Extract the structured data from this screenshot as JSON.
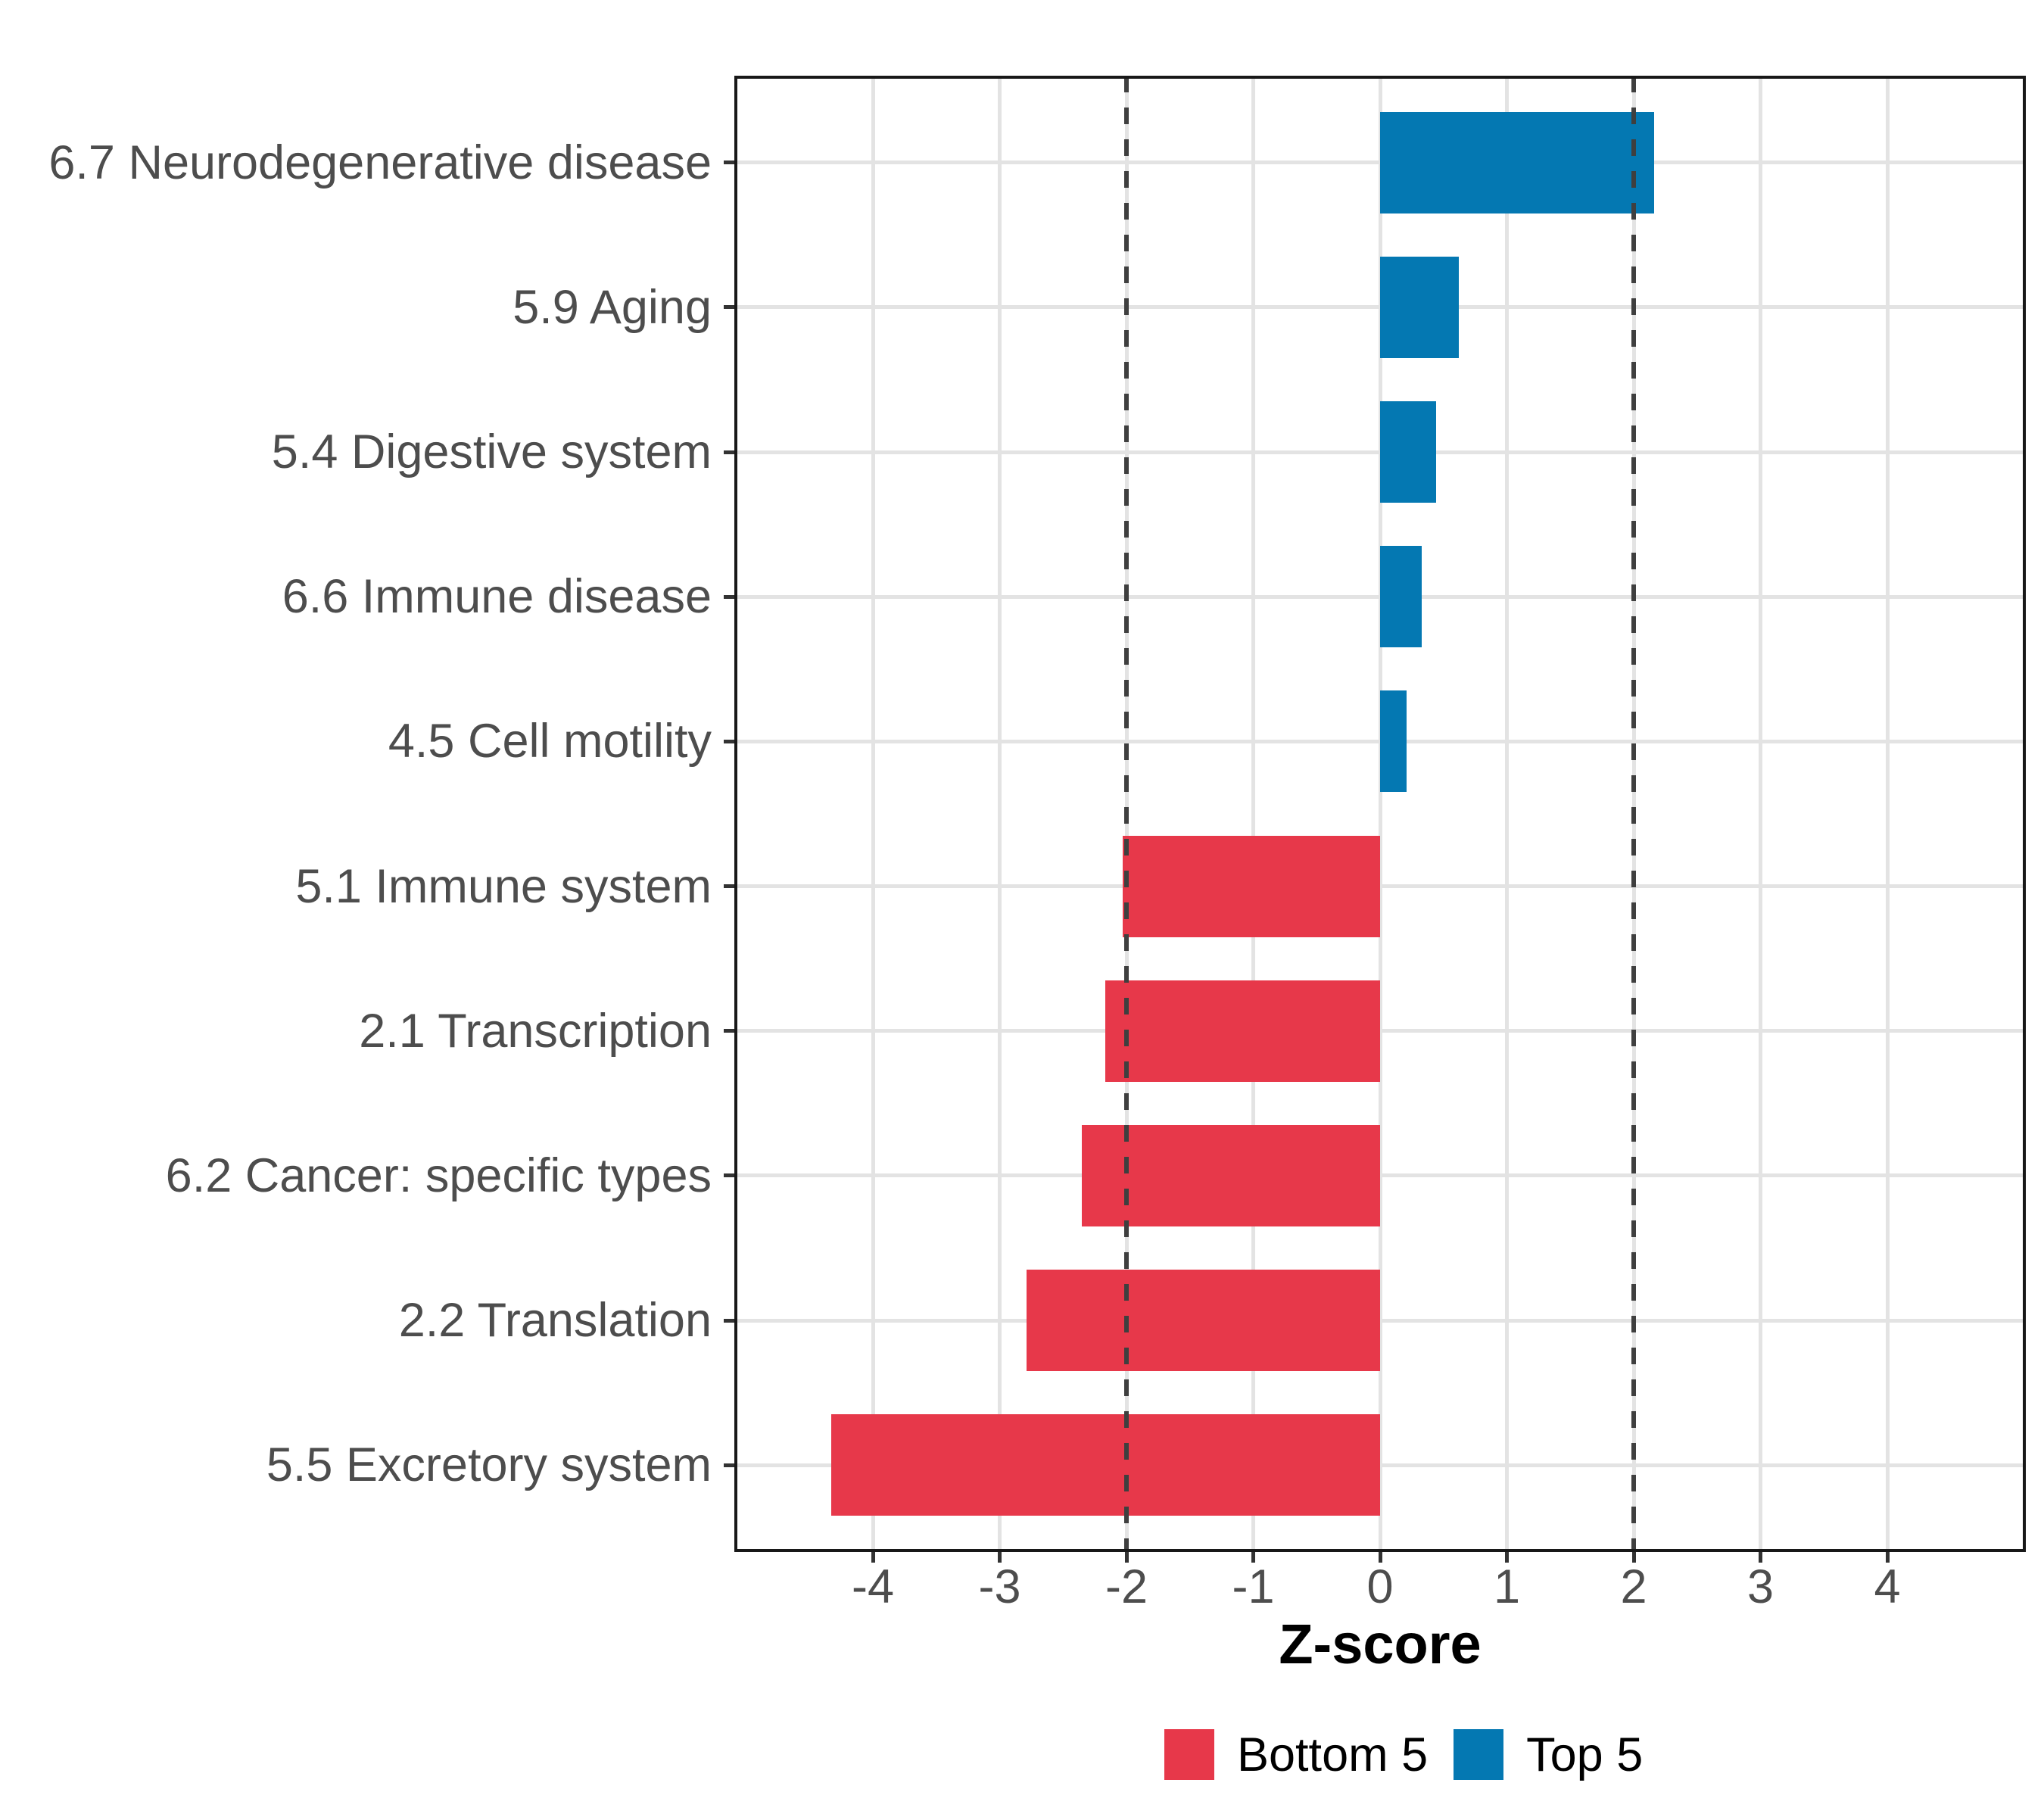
{
  "chart_data": {
    "type": "bar",
    "orientation": "horizontal",
    "title": "",
    "xlabel": "Z-score",
    "ylabel": "",
    "x_ticks": [
      -4,
      -3,
      -2,
      -1,
      0,
      1,
      2,
      3,
      4
    ],
    "xlim": [
      -5.09,
      4.95
    ],
    "grid": "major-only",
    "reference_lines": {
      "style": "dashed",
      "color": "#3f3f3f",
      "values": [
        -2,
        2
      ]
    },
    "bar_colors": {
      "Top 5": "#0478b2",
      "Bottom 5": "#e7384a"
    },
    "bars": [
      {
        "label": "6.7 Neurodegenerative disease",
        "value": 2.16,
        "group": "Top 5"
      },
      {
        "label": "5.9 Aging",
        "value": 0.62,
        "group": "Top 5"
      },
      {
        "label": "5.4 Digestive system",
        "value": 0.44,
        "group": "Top 5"
      },
      {
        "label": "6.6 Immune disease",
        "value": 0.33,
        "group": "Top 5"
      },
      {
        "label": "4.5 Cell motility",
        "value": 0.21,
        "group": "Top 5"
      },
      {
        "label": "5.1 Immune system",
        "value": -2.03,
        "group": "Bottom 5"
      },
      {
        "label": "2.1 Transcription",
        "value": -2.17,
        "group": "Bottom 5"
      },
      {
        "label": "6.2 Cancer: specific types",
        "value": -2.35,
        "group": "Bottom 5"
      },
      {
        "label": "2.2 Translation",
        "value": -2.79,
        "group": "Bottom 5"
      },
      {
        "label": "5.5 Excretory system",
        "value": -4.33,
        "group": "Bottom 5"
      }
    ],
    "legend": {
      "position": "bottom",
      "entries": [
        {
          "label": "Bottom 5",
          "color": "#e7384a"
        },
        {
          "label": "Top 5",
          "color": "#0478b2"
        }
      ]
    },
    "colors": {
      "axis_text": "#4d4d4d",
      "axis_title": "#000000",
      "gridline": "#e3e3e3",
      "panel_border": "#181818",
      "background": "#ffffff"
    }
  }
}
